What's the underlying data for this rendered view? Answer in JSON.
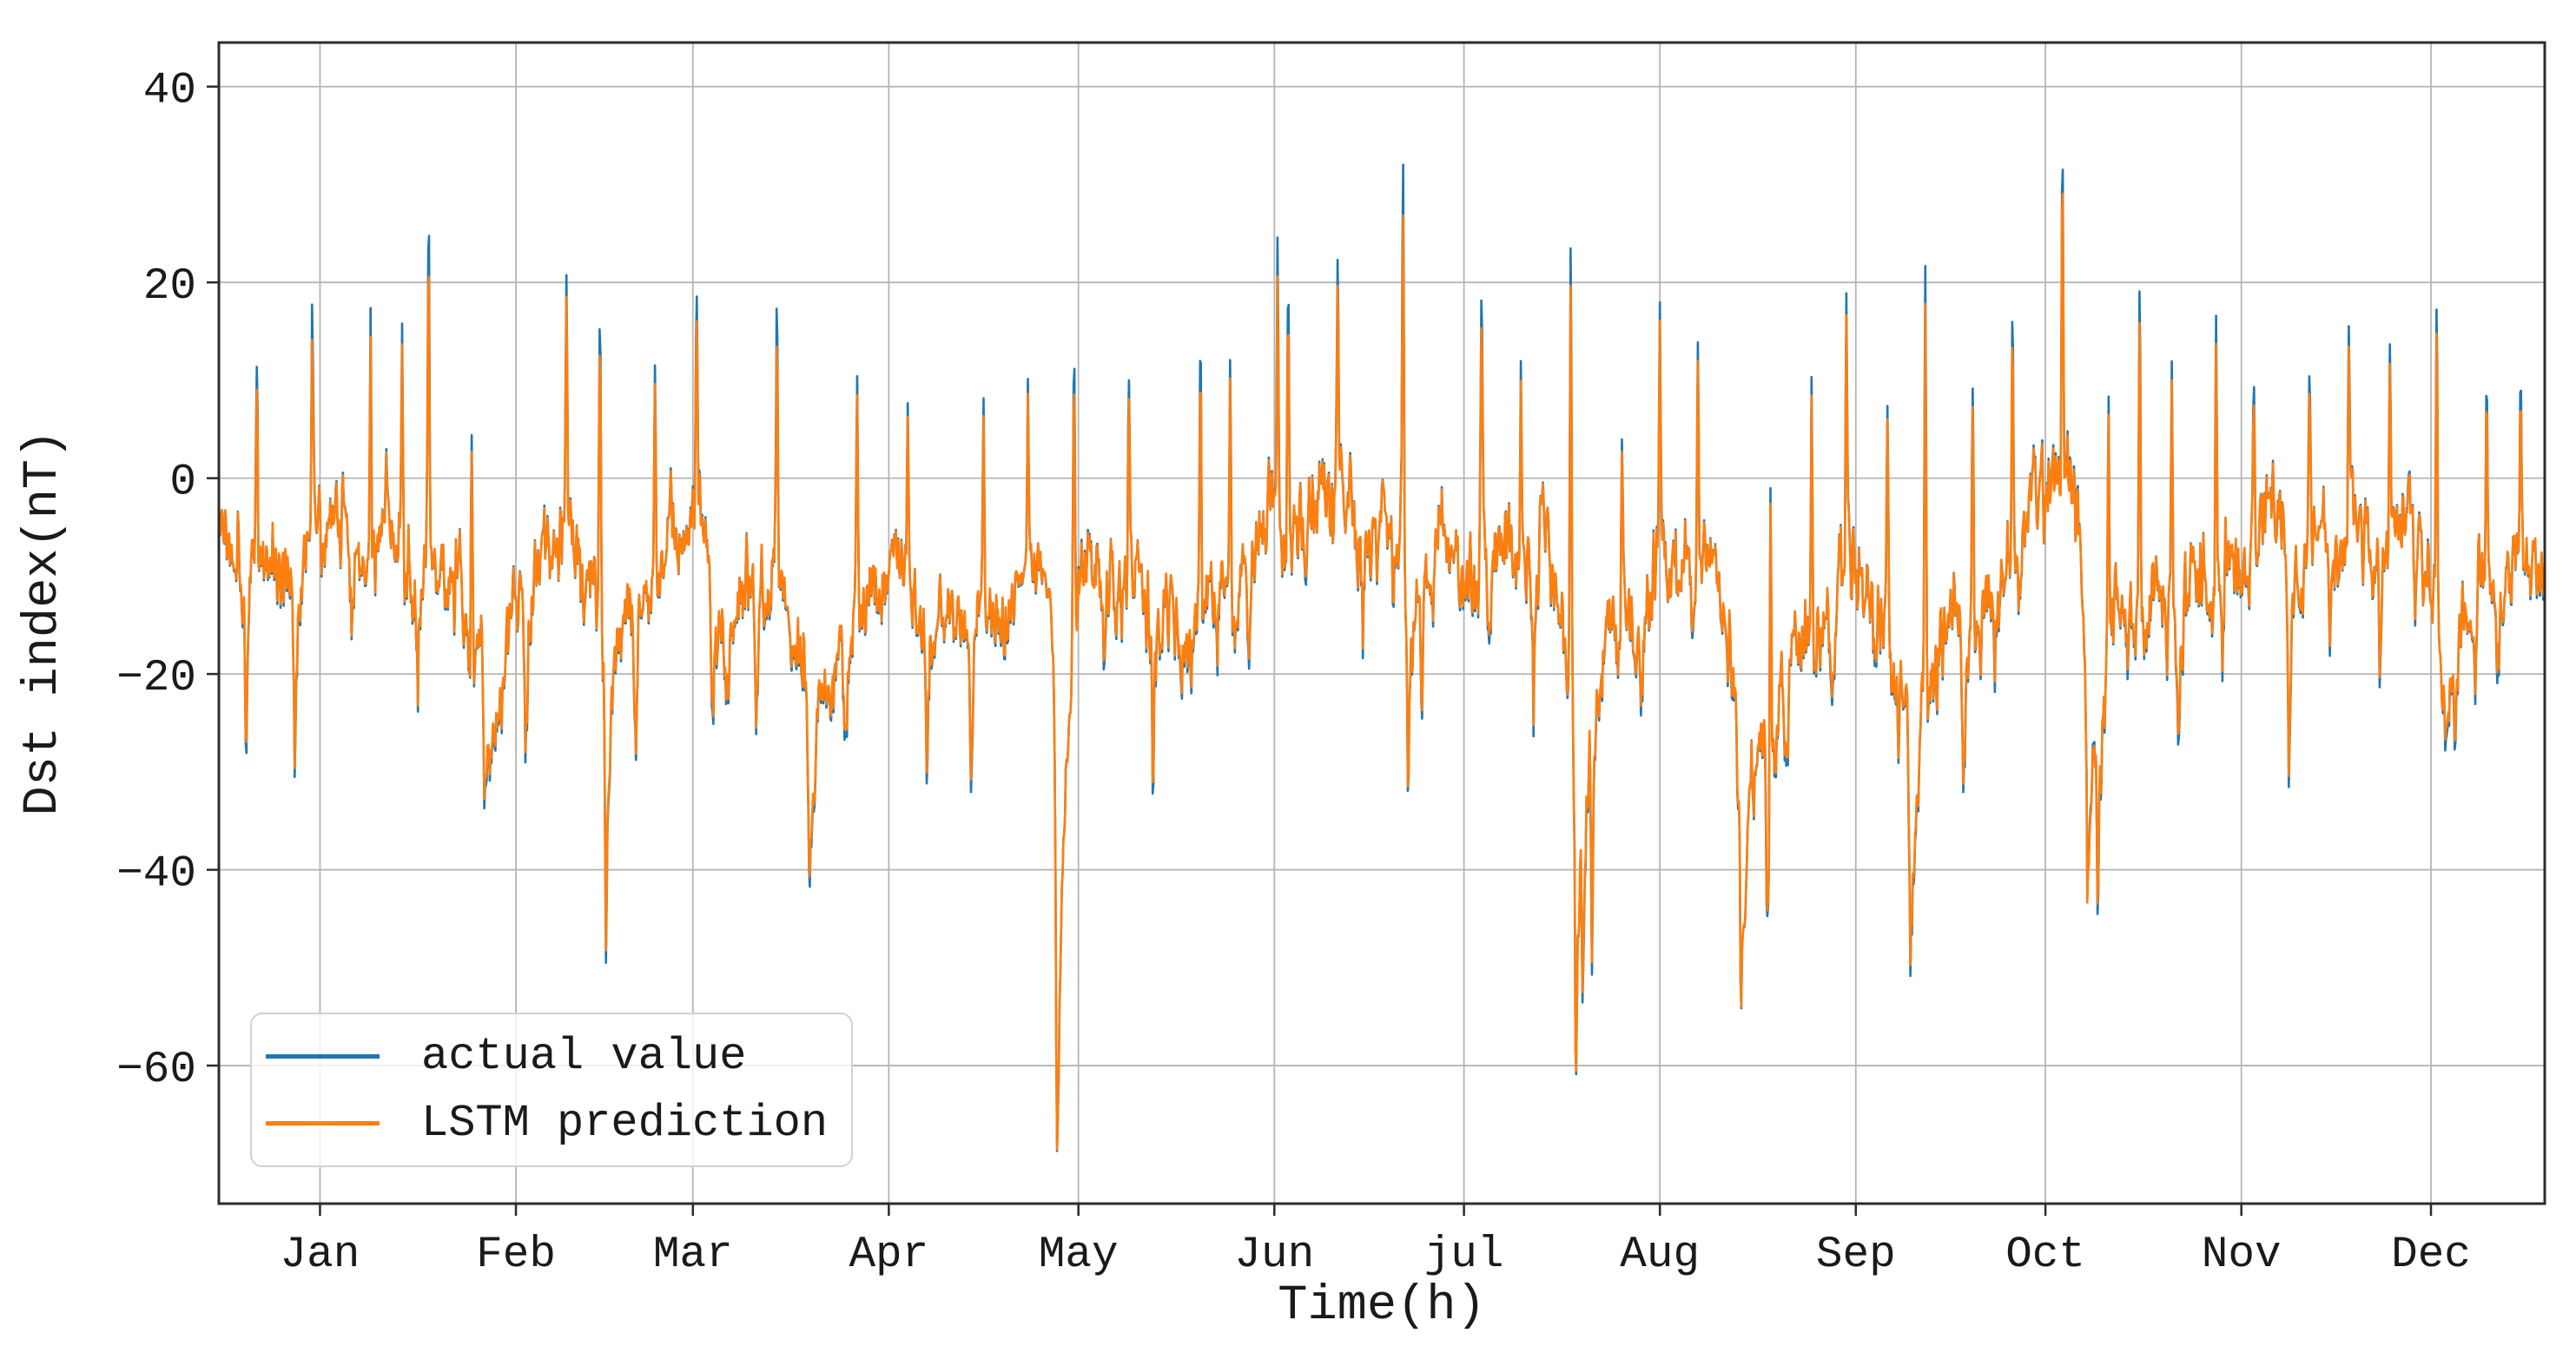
{
  "chart_data": {
    "type": "line",
    "title": "",
    "xlabel": "Time(h)",
    "ylabel": "Dst index(nT)",
    "x_range_days": [
      0,
      368
    ],
    "x_ticks": [
      {
        "label": "Jan",
        "day": 16
      },
      {
        "label": "Feb",
        "day": 47
      },
      {
        "label": "Mar",
        "day": 75
      },
      {
        "label": "Apr",
        "day": 106
      },
      {
        "label": "May",
        "day": 136
      },
      {
        "label": "Jun",
        "day": 167
      },
      {
        "label": "jul",
        "day": 197
      },
      {
        "label": "Aug",
        "day": 228
      },
      {
        "label": "Sep",
        "day": 259
      },
      {
        "label": "Oct",
        "day": 289
      },
      {
        "label": "Nov",
        "day": 320
      },
      {
        "label": "Dec",
        "day": 350
      }
    ],
    "y_ticks": [
      {
        "label": "40",
        "value": 40
      },
      {
        "label": "20",
        "value": 20
      },
      {
        "label": "0",
        "value": 0
      },
      {
        "label": "−20",
        "value": -20
      },
      {
        "label": "−40",
        "value": -40
      },
      {
        "label": "−60",
        "value": -60
      }
    ],
    "ylim": [
      -74.1,
      44.5
    ],
    "grid": true,
    "grid_color": "#b5b5b5",
    "spine_color": "#2b2b2b",
    "legend_position": "lower left",
    "series": [
      {
        "name": "actual value",
        "color": "#1f77b4"
      },
      {
        "name": "LSTM prediction",
        "color": "#ff7f0e"
      }
    ],
    "sampling_step_hours": 3,
    "noise": {
      "seed": 1337,
      "fast_gain": 6,
      "fast_ar": 0.55,
      "slow_gain": 2.9,
      "slow_ar": 0.97,
      "ripple_amp": 1.1,
      "prediction_noise_factor": 0.96
    },
    "baseline_anchors": [
      [
        0,
        -4,
        7
      ],
      [
        5,
        -6,
        8
      ],
      [
        10,
        -4,
        8
      ],
      [
        15,
        -3,
        8
      ],
      [
        20,
        -6,
        8
      ],
      [
        26,
        -5,
        8
      ],
      [
        32,
        -7,
        9
      ],
      [
        38,
        -8,
        8
      ],
      [
        43,
        -18,
        7
      ],
      [
        46,
        -14,
        7
      ],
      [
        50,
        -10,
        8
      ],
      [
        56,
        -6,
        8
      ],
      [
        62,
        -12,
        7
      ],
      [
        66,
        -9,
        8
      ],
      [
        72,
        -7,
        8
      ],
      [
        80,
        -12,
        8
      ],
      [
        88,
        -4,
        8
      ],
      [
        94,
        -16,
        7
      ],
      [
        99,
        -12,
        7
      ],
      [
        105,
        -8,
        7
      ],
      [
        110,
        -10,
        7
      ],
      [
        116,
        -11,
        7
      ],
      [
        124,
        -8,
        6
      ],
      [
        130,
        -6,
        5
      ],
      [
        133,
        -20,
        6
      ],
      [
        136,
        -14,
        7
      ],
      [
        142,
        -8,
        8
      ],
      [
        150,
        -9,
        8
      ],
      [
        157,
        -5,
        8
      ],
      [
        162,
        -7,
        7
      ],
      [
        168,
        -3,
        8
      ],
      [
        174,
        -4,
        8
      ],
      [
        180,
        -4,
        8
      ],
      [
        186,
        -2,
        8
      ],
      [
        189,
        -10,
        8
      ],
      [
        196,
        -5,
        8
      ],
      [
        203,
        -7,
        8
      ],
      [
        210,
        -4,
        8
      ],
      [
        215.5,
        -20,
        8
      ],
      [
        219,
        -12,
        8
      ],
      [
        226,
        -12,
        8
      ],
      [
        232,
        -9,
        8
      ],
      [
        239,
        -10,
        8
      ],
      [
        241.5,
        -22,
        8
      ],
      [
        246,
        -18,
        9
      ],
      [
        250,
        -14,
        9
      ],
      [
        256,
        -9,
        8
      ],
      [
        263,
        -12,
        9
      ],
      [
        268.3,
        -20,
        8
      ],
      [
        273,
        -12,
        8
      ],
      [
        279,
        -10,
        8
      ],
      [
        286,
        -4,
        8
      ],
      [
        293,
        -6,
        8
      ],
      [
        296.3,
        -18,
        8
      ],
      [
        300,
        -10,
        8
      ],
      [
        306,
        -8,
        8
      ],
      [
        312,
        -9,
        8
      ],
      [
        318,
        -6,
        8
      ],
      [
        324,
        -4,
        7
      ],
      [
        330,
        -6,
        7
      ],
      [
        336,
        -5,
        7
      ],
      [
        340,
        -7,
        7
      ],
      [
        344,
        -6,
        7
      ],
      [
        347,
        -8,
        7
      ],
      [
        350,
        -14,
        7
      ],
      [
        352.5,
        -22,
        6
      ],
      [
        356,
        -12,
        7
      ],
      [
        359,
        -6,
        7
      ],
      [
        362,
        -8,
        7
      ],
      [
        365,
        -4,
        7
      ],
      [
        368,
        -2,
        7
      ]
    ],
    "peak_events": [
      [
        6,
        15,
        12.5
      ],
      [
        14.8,
        23,
        19
      ],
      [
        24,
        19,
        16
      ],
      [
        29,
        13,
        11
      ],
      [
        33.2,
        27,
        22.5
      ],
      [
        40,
        12,
        10
      ],
      [
        55,
        15,
        13
      ],
      [
        60.3,
        20,
        17
      ],
      [
        69,
        14,
        12
      ],
      [
        75.6,
        17,
        14.5
      ],
      [
        88.3,
        27,
        22.5
      ],
      [
        101,
        12,
        10
      ],
      [
        109,
        10,
        8.5
      ],
      [
        121,
        13,
        11
      ],
      [
        128,
        10,
        8.5
      ],
      [
        135.3,
        18,
        15
      ],
      [
        144,
        12,
        10
      ],
      [
        155.3,
        25,
        21
      ],
      [
        160,
        15,
        13
      ],
      [
        167.5,
        26,
        22
      ],
      [
        169.2,
        24,
        20.5
      ],
      [
        177,
        18,
        15.5
      ],
      [
        187.35,
        39,
        33.5
      ],
      [
        199.8,
        20,
        17
      ],
      [
        206,
        12,
        10
      ],
      [
        213.9,
        28,
        24
      ],
      [
        222,
        10,
        8.5
      ],
      [
        228,
        9,
        7.5
      ],
      [
        234,
        15,
        13
      ],
      [
        245.5,
        15,
        13
      ],
      [
        252,
        12,
        10
      ],
      [
        257.5,
        13,
        11
      ],
      [
        264,
        11,
        9.5
      ],
      [
        270,
        25,
        21
      ],
      [
        277.5,
        12,
        10
      ],
      [
        283.8,
        21,
        18
      ],
      [
        291.7,
        31,
        28.5
      ],
      [
        299,
        12,
        10
      ],
      [
        303.9,
        25,
        21.5
      ],
      [
        309,
        13,
        11
      ],
      [
        316,
        20,
        17
      ],
      [
        322,
        12,
        10
      ],
      [
        330.8,
        13,
        11
      ],
      [
        337,
        14,
        12
      ],
      [
        343.5,
        13,
        11
      ],
      [
        350.9,
        18,
        15.5
      ],
      [
        358.8,
        15,
        13
      ],
      [
        364.2,
        16,
        13.5
      ]
    ],
    "dip_events": [
      [
        4.3,
        -24,
        -23,
        10
      ],
      [
        12,
        -20,
        -19.5,
        8
      ],
      [
        21,
        -20,
        -19.5,
        8
      ],
      [
        31.5,
        -20,
        -19.5,
        8
      ],
      [
        42,
        -35,
        -34,
        40
      ],
      [
        48.5,
        -28,
        -27,
        14
      ],
      [
        61.2,
        -43,
        -42,
        16
      ],
      [
        66,
        -25,
        -24.5,
        10
      ],
      [
        78,
        -26,
        -25,
        12
      ],
      [
        85,
        -22,
        -21.5,
        8
      ],
      [
        93.4,
        -40,
        -39,
        20
      ],
      [
        99,
        -25,
        -24,
        10
      ],
      [
        112,
        -28,
        -27,
        12
      ],
      [
        119,
        -25,
        -24,
        8
      ],
      [
        132.55,
        -68,
        -68,
        26
      ],
      [
        140,
        -22,
        -21,
        8
      ],
      [
        147.8,
        -27,
        -26,
        10
      ],
      [
        158,
        -20,
        -19,
        8
      ],
      [
        163,
        -18,
        -17,
        6
      ],
      [
        172,
        -15,
        -14,
        6
      ],
      [
        181,
        -18,
        -17,
        6
      ],
      [
        188.15,
        -34,
        -33.5,
        10
      ],
      [
        190.3,
        -27,
        -26,
        8
      ],
      [
        192.1,
        -24,
        -23,
        6
      ],
      [
        201,
        -20,
        -19,
        8
      ],
      [
        208,
        -22,
        -21,
        8
      ],
      [
        214.65,
        -56,
        -56,
        26
      ],
      [
        215.7,
        -53,
        -52,
        18
      ],
      [
        217.2,
        -44,
        -43,
        16
      ],
      [
        225,
        -25,
        -24,
        10
      ],
      [
        233,
        -20,
        -19,
        8
      ],
      [
        240.8,
        -51,
        -51,
        30
      ],
      [
        244.9,
        -44,
        -43.5,
        18
      ],
      [
        248,
        -32,
        -31,
        12
      ],
      [
        255,
        -20,
        -19,
        8
      ],
      [
        262,
        -25,
        -24,
        8
      ],
      [
        267.6,
        -48,
        -47,
        22
      ],
      [
        276,
        -36,
        -35,
        14
      ],
      [
        281,
        -20,
        -19,
        8
      ],
      [
        295.6,
        -46,
        -47,
        26
      ],
      [
        297.2,
        -43,
        -42,
        16
      ],
      [
        302,
        -20,
        -19,
        8
      ],
      [
        310,
        -25,
        -24,
        10
      ],
      [
        317,
        -20,
        -19,
        8
      ],
      [
        327.5,
        -28,
        -27,
        12
      ],
      [
        334,
        -18,
        -17,
        6
      ],
      [
        341.9,
        -19,
        -18,
        8
      ],
      [
        347.5,
        -24,
        -23,
        8
      ],
      [
        352.3,
        -31,
        -29.5,
        12
      ],
      [
        353.8,
        -26,
        -25,
        8
      ],
      [
        357,
        -22,
        -21,
        8
      ],
      [
        360.5,
        -18,
        -17,
        6
      ]
    ]
  }
}
